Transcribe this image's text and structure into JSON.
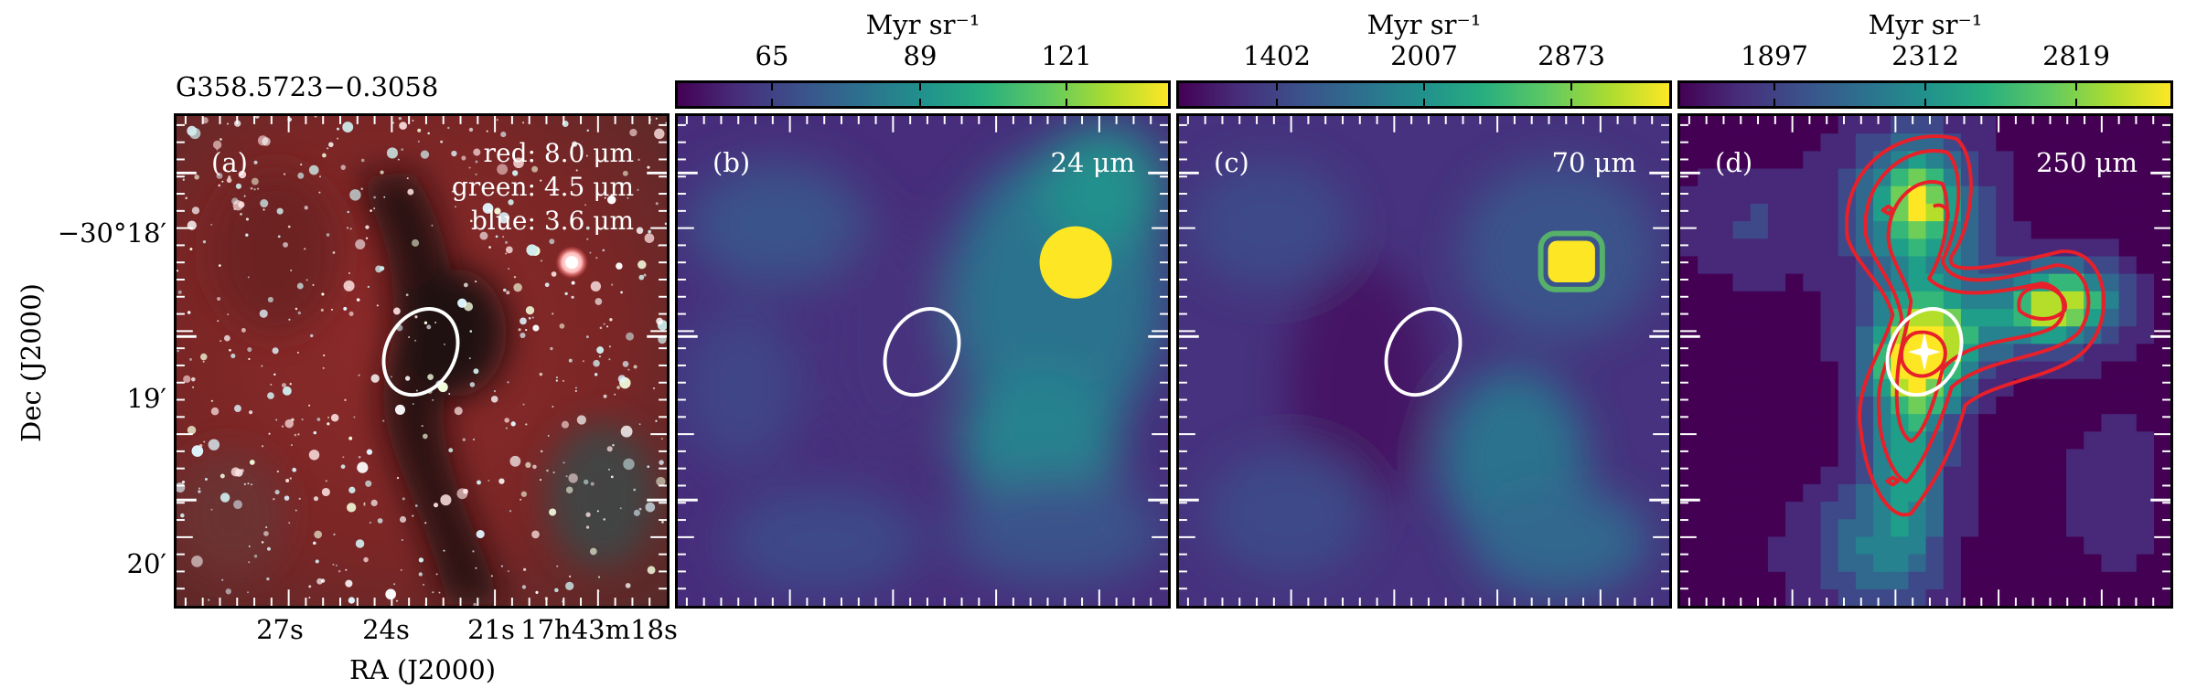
{
  "figure": {
    "source_name": "G358.5723−0.3058",
    "x_axis_label": "RA (J2000)",
    "y_axis_label": "Dec (J2000)",
    "x_tick_labels": [
      "27s",
      "24s",
      "21s",
      "17h43m18s"
    ],
    "y_tick_labels": [
      "−30°18′",
      "19′",
      "20′"
    ]
  },
  "panels": [
    {
      "label": "(a)",
      "bands": [
        "red: 8.0 μm",
        "green: 4.5 μm",
        "blue: 3.6 μm"
      ]
    },
    {
      "label": "(b)",
      "wavelength": "24 μm",
      "colorbar": {
        "unit": "Myr sr⁻¹",
        "ticks": [
          "65",
          "89",
          "121"
        ]
      }
    },
    {
      "label": "(c)",
      "wavelength": "70 μm",
      "colorbar": {
        "unit": "Myr sr⁻¹",
        "ticks": [
          "1402",
          "2007",
          "2873"
        ]
      }
    },
    {
      "label": "(d)",
      "wavelength": "250 μm",
      "colorbar": {
        "unit": "Myr sr⁻¹",
        "ticks": [
          "1897",
          "2312",
          "2819"
        ]
      }
    }
  ],
  "colors": {
    "colormap": "viridis",
    "contour": "#e8202a",
    "ellipse": "#ffffff"
  }
}
